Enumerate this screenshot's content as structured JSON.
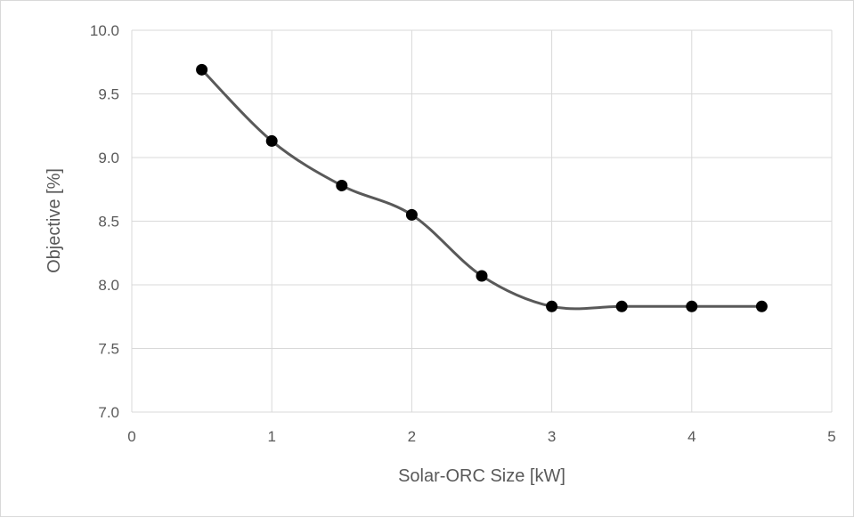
{
  "chart_data": {
    "type": "scatter",
    "title": "",
    "xlabel": "Solar-ORC Size [kW]",
    "ylabel": "Objective [%]",
    "xlim": [
      0,
      5
    ],
    "ylim": [
      7.0,
      10.0
    ],
    "x_ticks": [
      "0",
      "1",
      "2",
      "3",
      "4",
      "5"
    ],
    "y_ticks": [
      "7.0",
      "7.5",
      "8.0",
      "8.5",
      "9.0",
      "9.5",
      "10.0"
    ],
    "x_tick_values": [
      0,
      1,
      2,
      3,
      4,
      5
    ],
    "y_tick_values": [
      7.0,
      7.5,
      8.0,
      8.5,
      9.0,
      9.5,
      10.0
    ],
    "grid": "vertical and horizontal",
    "smooth_line": true,
    "series": [
      {
        "x": [
          0.5,
          1.0,
          1.5,
          2.0,
          2.5,
          3.0,
          3.5,
          4.0,
          4.5
        ],
        "y": [
          9.69,
          9.13,
          8.78,
          8.55,
          8.07,
          7.83,
          7.83,
          7.83,
          7.83
        ]
      }
    ],
    "colors": {
      "line": "#595959",
      "marker": "#000000",
      "grid": "#d9d9d9",
      "text": "#595959"
    }
  }
}
